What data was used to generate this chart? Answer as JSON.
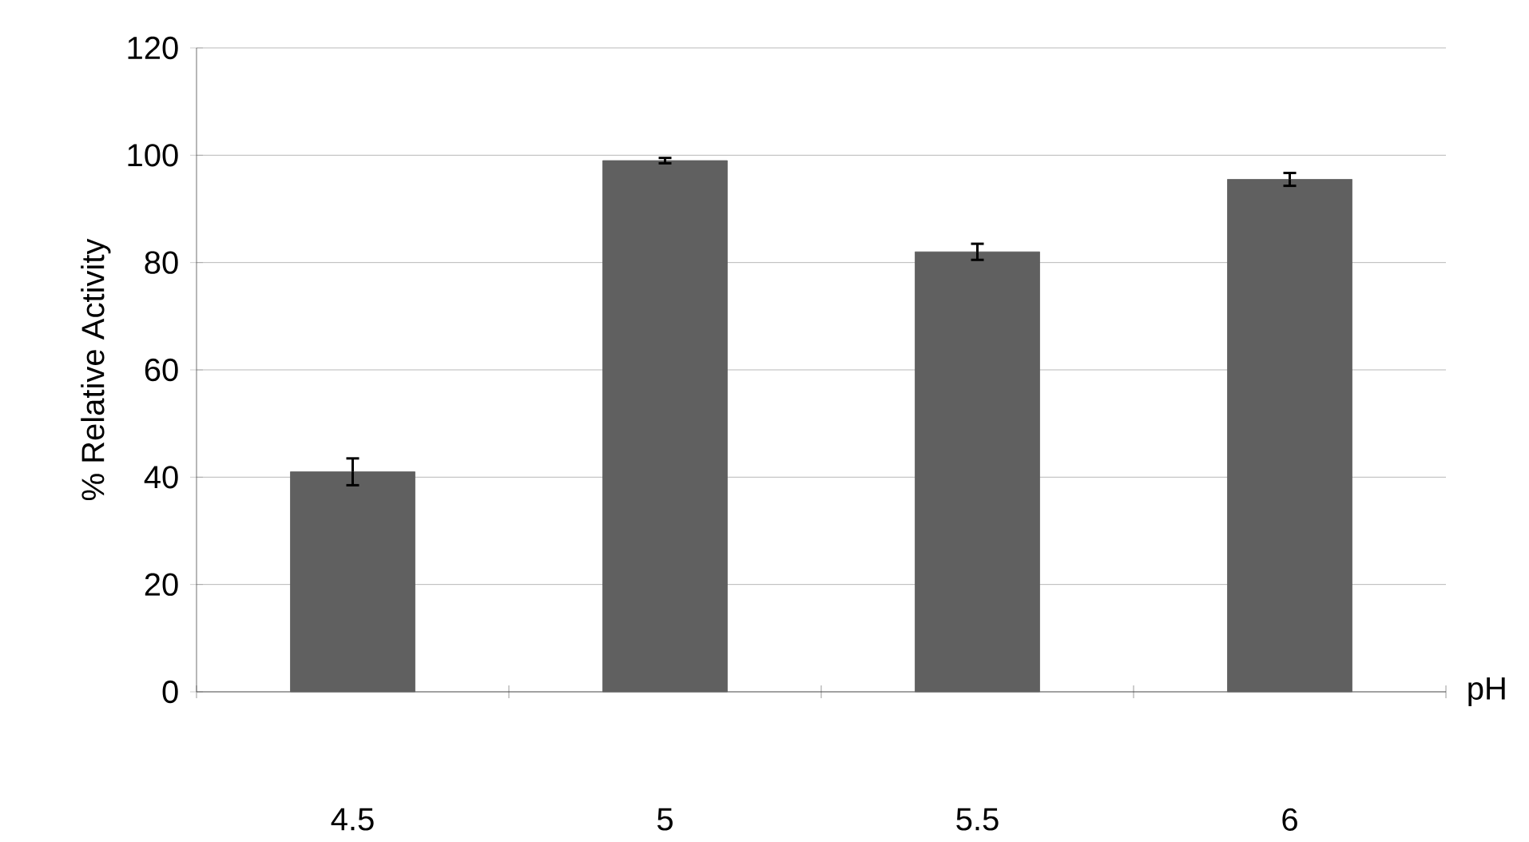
{
  "chart_data": {
    "type": "bar",
    "xlabel": "pH",
    "ylabel": "% Relative Activity",
    "categories": [
      "4.5",
      "5",
      "5.5",
      "6"
    ],
    "values": [
      41,
      99,
      82,
      95.5
    ],
    "errors": [
      2.5,
      0.5,
      1.5,
      1.2
    ],
    "color": "#606060",
    "ylim": [
      0,
      120
    ],
    "yticks": [
      0,
      20,
      40,
      60,
      80,
      100,
      120
    ],
    "grid": "y",
    "legend": false
  }
}
